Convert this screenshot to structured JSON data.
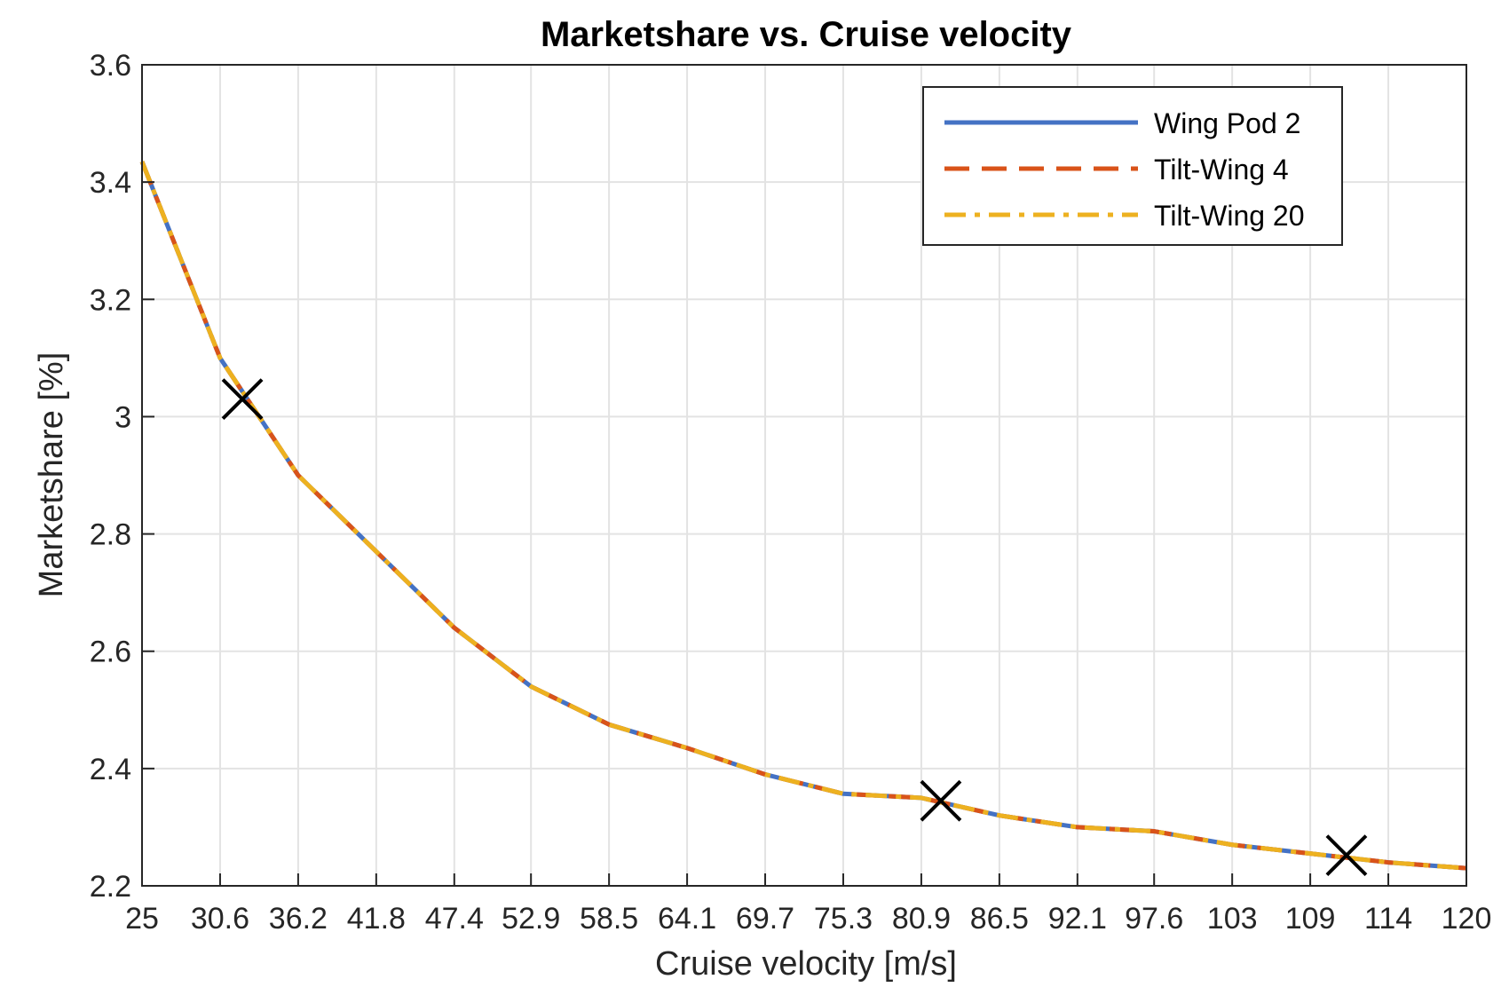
{
  "chart_data": {
    "type": "line",
    "title": "Marketshare vs. Cruise velocity",
    "xlabel": "Cruise velocity [m/s]",
    "ylabel": "Marketshare [%]",
    "xlim": [
      25,
      120
    ],
    "ylim": [
      2.2,
      3.6
    ],
    "grid": true,
    "legend_position": "top-right",
    "x_ticks": [
      "25",
      "30.6",
      "36.2",
      "41.8",
      "47.4",
      "52.9",
      "58.5",
      "64.1",
      "69.7",
      "75.3",
      "80.9",
      "86.5",
      "92.1",
      "97.6",
      "103",
      "109",
      "114",
      "120"
    ],
    "y_ticks": [
      "2.2",
      "2.4",
      "2.6",
      "2.8",
      "3",
      "3.2",
      "3.4",
      "3.6"
    ],
    "x": [
      25,
      30.6,
      36.2,
      41.8,
      47.4,
      52.9,
      58.5,
      64.1,
      69.7,
      75.3,
      80.9,
      86.5,
      92.1,
      97.6,
      103.2,
      108.8,
      114.4,
      120
    ],
    "series": [
      {
        "name": "Wing Pod 2",
        "color": "#4472C4",
        "style": "solid",
        "values": [
          3.435,
          3.1,
          2.9,
          2.77,
          2.64,
          2.54,
          2.475,
          2.435,
          2.39,
          2.357,
          2.35,
          2.32,
          2.3,
          2.293,
          2.27,
          2.255,
          2.24,
          2.23
        ]
      },
      {
        "name": "Tilt-Wing 4",
        "color": "#D95319",
        "style": "dashed",
        "values": [
          3.435,
          3.1,
          2.9,
          2.77,
          2.64,
          2.54,
          2.475,
          2.435,
          2.39,
          2.357,
          2.35,
          2.32,
          2.3,
          2.293,
          2.27,
          2.255,
          2.24,
          2.23
        ]
      },
      {
        "name": "Tilt-Wing 20",
        "color": "#EDB120",
        "style": "dashdot",
        "values": [
          3.435,
          3.1,
          2.9,
          2.77,
          2.64,
          2.54,
          2.475,
          2.435,
          2.39,
          2.357,
          2.35,
          2.32,
          2.3,
          2.293,
          2.27,
          2.255,
          2.24,
          2.23
        ]
      }
    ],
    "markers": [
      {
        "symbol": "x",
        "x": 32.2,
        "y": 3.03
      },
      {
        "symbol": "x",
        "x": 82.3,
        "y": 2.345
      },
      {
        "symbol": "x",
        "x": 111.4,
        "y": 2.252
      }
    ]
  }
}
